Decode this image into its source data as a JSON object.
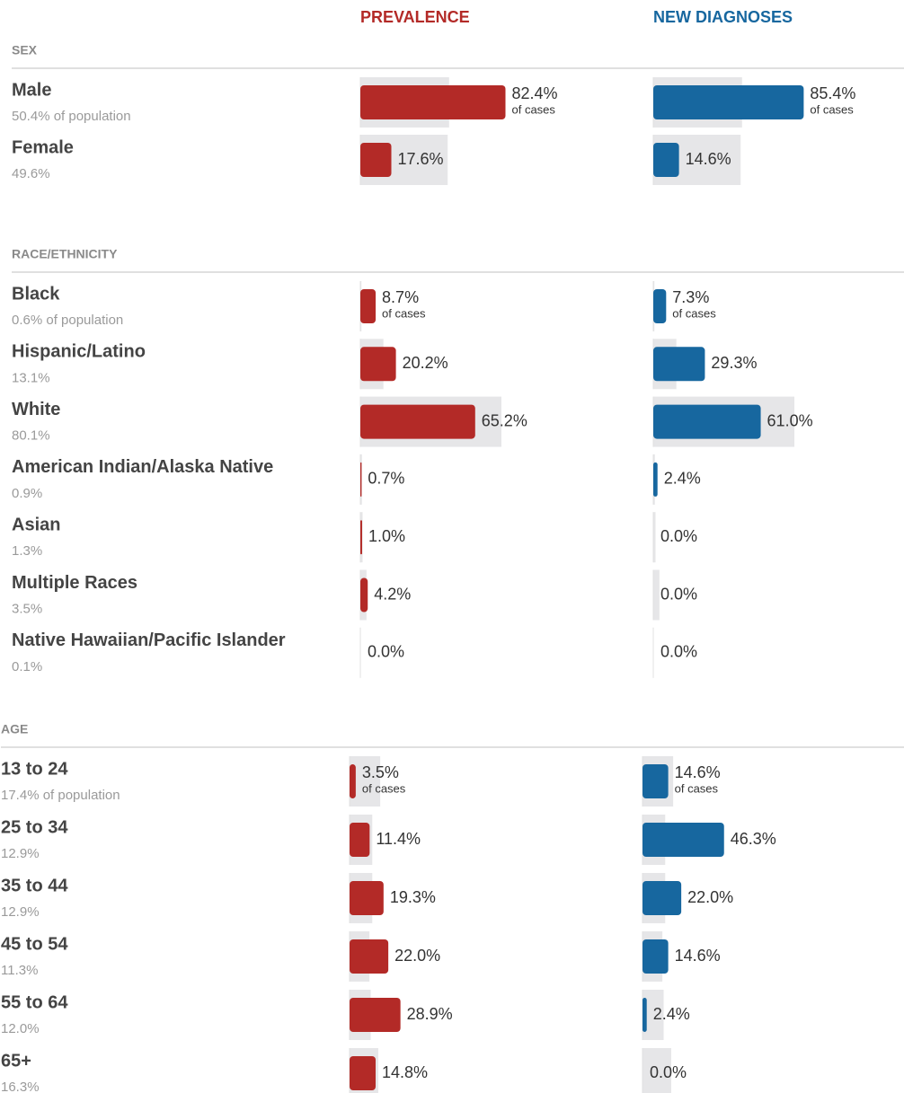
{
  "chart_data": {
    "type": "bar",
    "series": [
      {
        "name": "PREVALENCE",
        "color": "#b32a27"
      },
      {
        "name": "NEW DIAGNOSES",
        "color": "#17679f"
      }
    ],
    "population_color": "#e6e6e8",
    "cases_note": "of cases",
    "sections": [
      {
        "title": "SEX",
        "categories": [
          "Male",
          "Female"
        ],
        "population": [
          50.4,
          49.6
        ],
        "population_labels": [
          "50.4% of population",
          "49.6%"
        ],
        "series": [
          {
            "values": [
              82.4,
              17.6
            ],
            "value_labels": [
              "82.4%",
              "17.6%"
            ]
          },
          {
            "values": [
              85.4,
              14.6
            ],
            "value_labels": [
              "85.4%",
              "14.6%"
            ]
          }
        ]
      },
      {
        "title": "RACE/ETHNICITY",
        "categories": [
          "Black",
          "Hispanic/Latino",
          "White",
          "American Indian/Alaska Native",
          "Asian",
          "Multiple Races",
          "Native Hawaiian/Pacific Islander"
        ],
        "population": [
          0.6,
          13.1,
          80.1,
          0.9,
          1.3,
          3.5,
          0.1
        ],
        "population_labels": [
          "0.6% of population",
          "13.1%",
          "80.1%",
          "0.9%",
          "1.3%",
          "3.5%",
          "0.1%"
        ],
        "series": [
          {
            "values": [
              8.7,
              20.2,
              65.2,
              0.7,
              1.0,
              4.2,
              0.0
            ],
            "value_labels": [
              "8.7%",
              "20.2%",
              "65.2%",
              "0.7%",
              "1.0%",
              "4.2%",
              "0.0%"
            ]
          },
          {
            "values": [
              7.3,
              29.3,
              61.0,
              2.4,
              0.0,
              0.0,
              0.0
            ],
            "value_labels": [
              "7.3%",
              "29.3%",
              "61.0%",
              "2.4%",
              "0.0%",
              "0.0%",
              "0.0%"
            ]
          }
        ]
      },
      {
        "title": "AGE",
        "categories": [
          "13 to 24",
          "25 to 34",
          "35 to 44",
          "45 to 54",
          "55 to 64",
          "65+"
        ],
        "population": [
          17.4,
          12.9,
          12.9,
          11.3,
          12.0,
          16.3
        ],
        "population_labels": [
          "17.4% of population",
          "12.9%",
          "12.9%",
          "11.3%",
          "12.0%",
          "16.3%"
        ],
        "series": [
          {
            "values": [
              3.5,
              11.4,
              19.3,
              22.0,
              28.9,
              14.8
            ],
            "value_labels": [
              "3.5%",
              "11.4%",
              "19.3%",
              "22.0%",
              "28.9%",
              "14.8%"
            ]
          },
          {
            "values": [
              14.6,
              46.3,
              22.0,
              14.6,
              2.4,
              0.0
            ],
            "value_labels": [
              "14.6%",
              "46.3%",
              "22.0%",
              "14.6%",
              "2.4%",
              "0.0%"
            ]
          }
        ]
      }
    ]
  }
}
